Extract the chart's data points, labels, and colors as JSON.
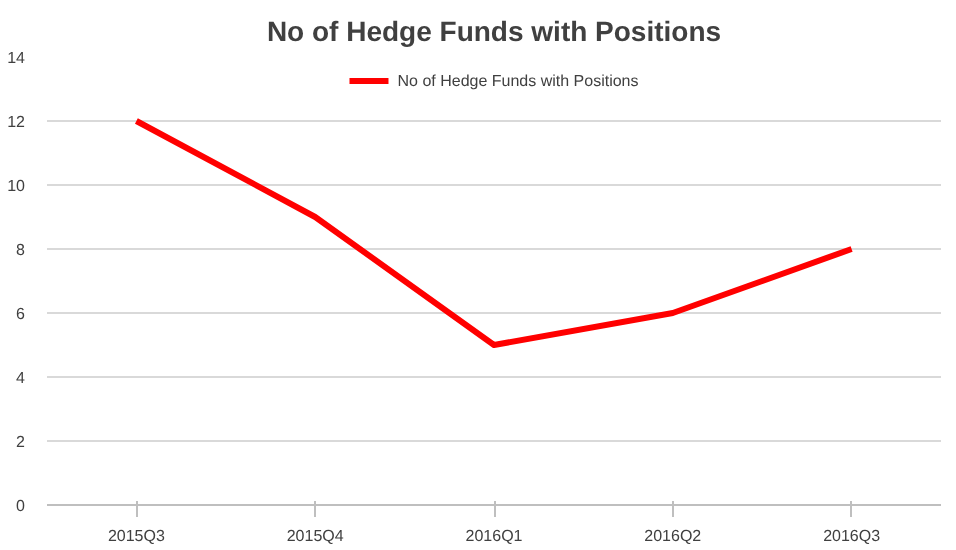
{
  "chart_data": {
    "type": "line",
    "title": "No of Hedge Funds with Positions",
    "categories": [
      "2015Q3",
      "2015Q4",
      "2016Q1",
      "2016Q2",
      "2016Q3"
    ],
    "series": [
      {
        "name": "No of Hedge Funds with Positions",
        "color": "#ff0000",
        "values": [
          12,
          9,
          5,
          6,
          8
        ]
      }
    ],
    "ylim": [
      0,
      14
    ],
    "yticks": [
      0,
      2,
      4,
      6,
      8,
      10,
      12,
      14
    ],
    "grid": "y",
    "legend": "top",
    "marker": "none",
    "line_style": "solid"
  }
}
